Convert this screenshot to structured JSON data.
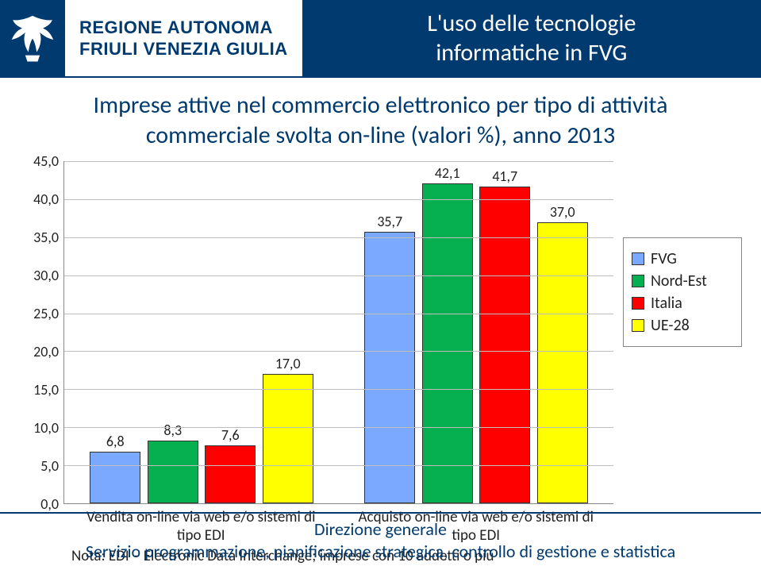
{
  "header": {
    "region_line1": "REGIONE AUTONOMA",
    "region_line2": "FRIULI VENEZIA GIULIA",
    "title_line1": "L'uso delle tecnologie",
    "title_line2": "informatiche in FVG"
  },
  "subtitle": "Imprese attive nel commercio elettronico per tipo di attività commerciale svolta on-line (valori %), anno 2013",
  "chart": {
    "type": "bar",
    "y": {
      "min": 0,
      "max": 45,
      "step": 5,
      "format_suffix": ",0"
    },
    "gridline_color": "#bfbfbf",
    "axis_color": "#888888",
    "background_color": "#ffffff",
    "groups": [
      {
        "label": "Vendita on-line via web e/o sistemi di tipo EDI",
        "bars": [
          {
            "series": "FVG",
            "value": 6.8,
            "label": "6,8",
            "color": "#7ba9ff"
          },
          {
            "series": "Nord-Est",
            "value": 8.3,
            "label": "8,3",
            "color": "#06b050"
          },
          {
            "series": "Italia",
            "value": 7.6,
            "label": "7,6",
            "color": "#ff0000"
          },
          {
            "series": "UE-28",
            "value": 17.0,
            "label": "17,0",
            "color": "#ffff00"
          }
        ]
      },
      {
        "label": "Acquisto on-line via web e/o sistemi di tipo EDI",
        "bars": [
          {
            "series": "FVG",
            "value": 35.7,
            "label": "35,7",
            "color": "#7ba9ff"
          },
          {
            "series": "Nord-Est",
            "value": 42.1,
            "label": "42,1",
            "color": "#06b050"
          },
          {
            "series": "Italia",
            "value": 41.7,
            "label": "41,7",
            "color": "#ff0000"
          },
          {
            "series": "UE-28",
            "value": 37.0,
            "label": "37,0",
            "color": "#ffff00"
          }
        ]
      }
    ],
    "legend": [
      {
        "label": "FVG",
        "color": "#7ba9ff"
      },
      {
        "label": "Nord-Est",
        "color": "#06b050"
      },
      {
        "label": "Italia",
        "color": "#ff0000"
      },
      {
        "label": "UE-28",
        "color": "#ffff00"
      }
    ],
    "bar_border_color": "#333333",
    "label_fontsize": 18
  },
  "note": "Nota: EDI – Electronic Data Interchange; imprese con 10 addetti o più",
  "footer": {
    "line1": "Direzione generale",
    "line2": "Servizio programmazione, pianificazione strategica, controllo di gestione e statistica"
  }
}
